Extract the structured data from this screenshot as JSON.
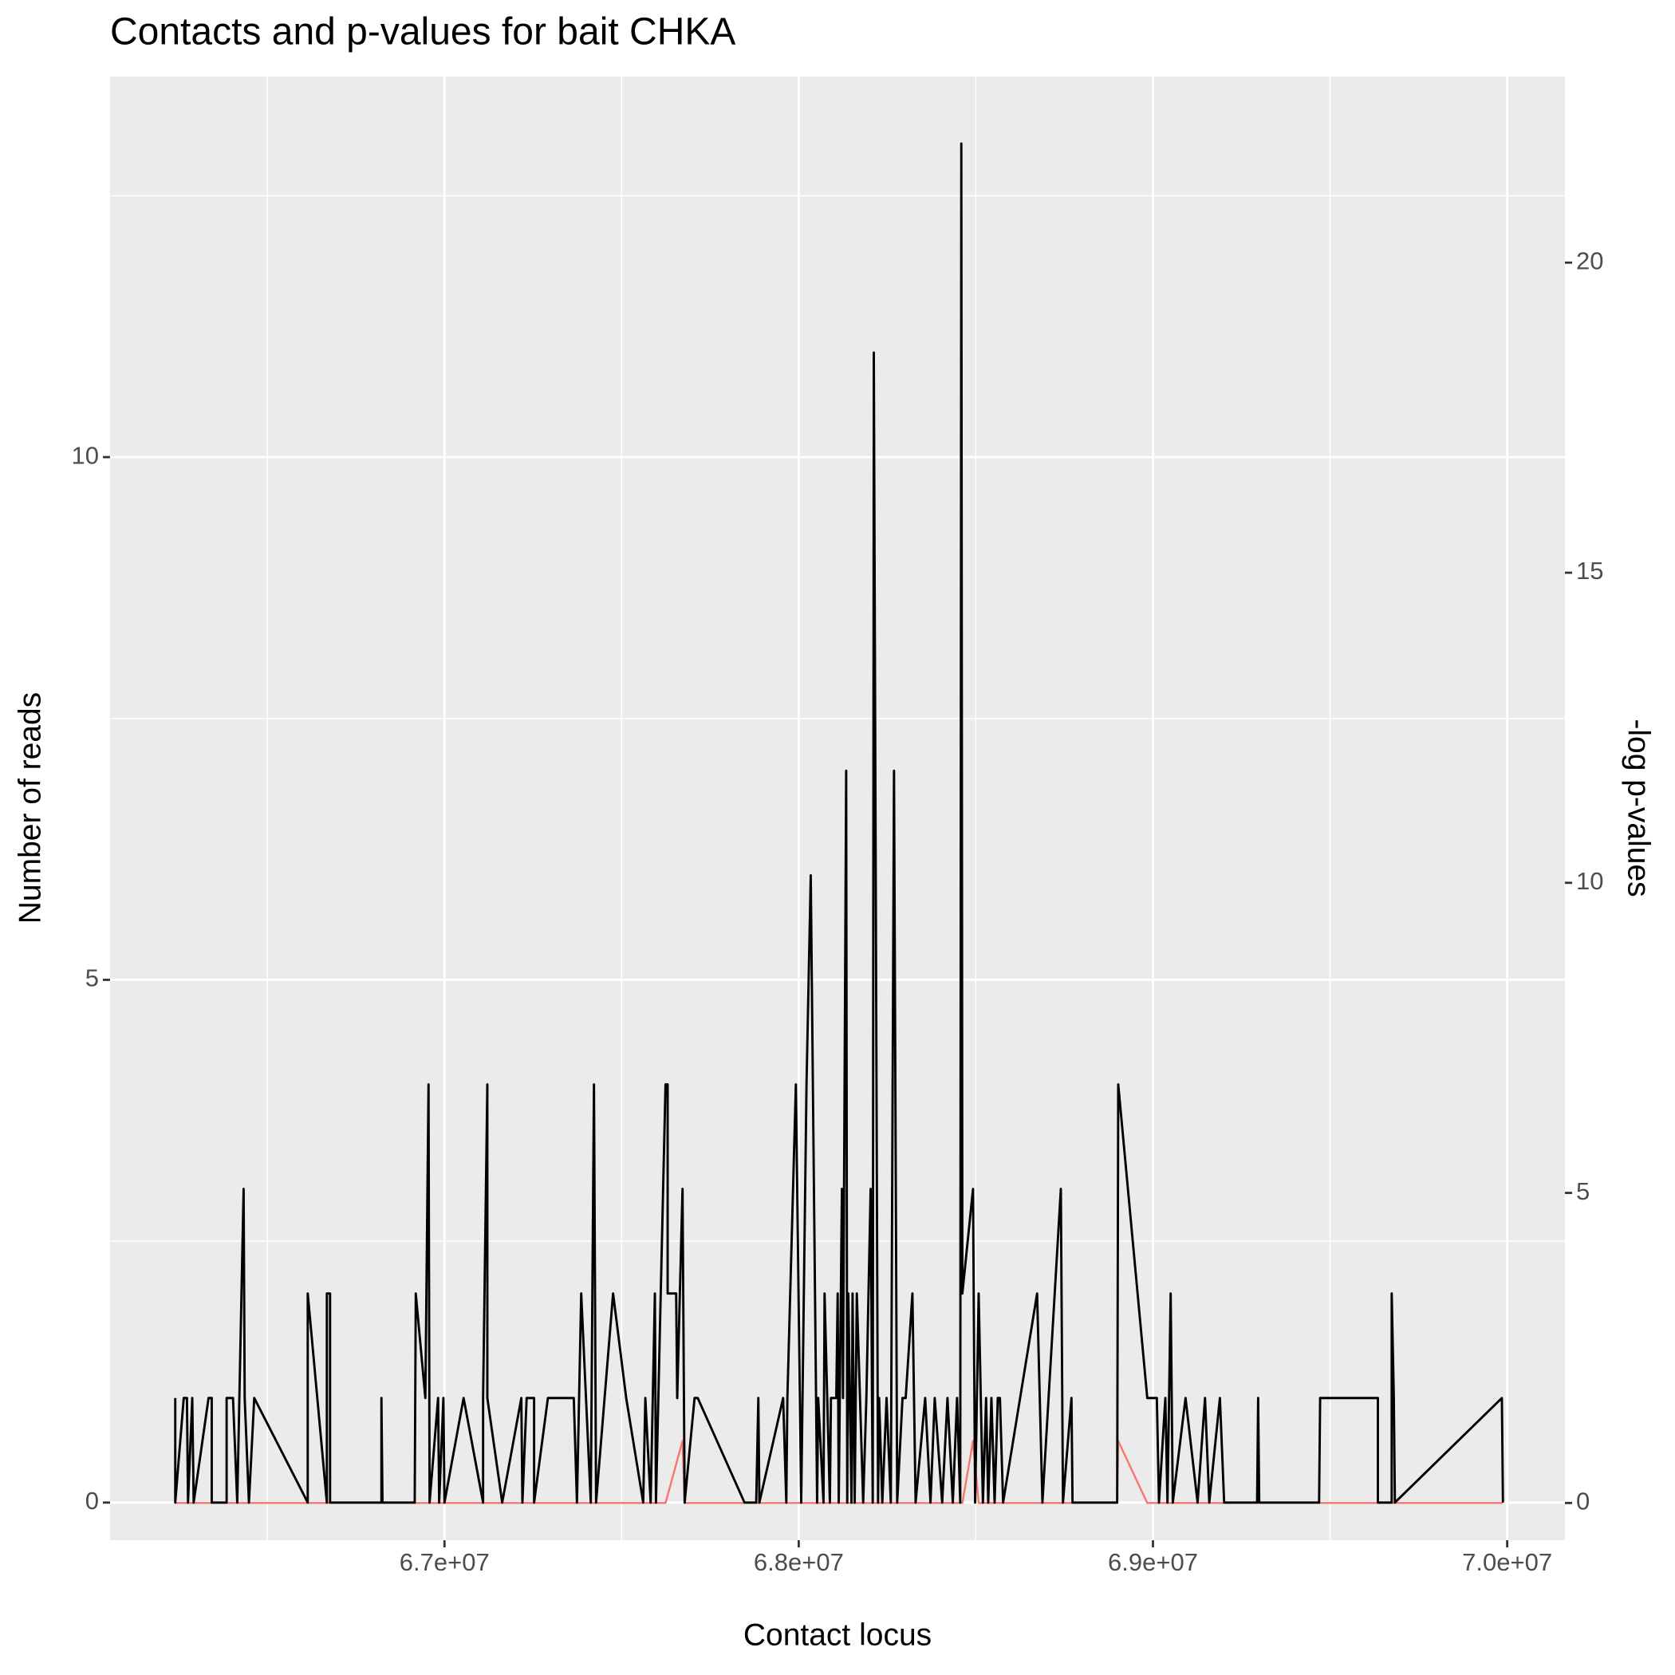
{
  "chart_data": {
    "type": "line",
    "title": "Contacts and p-values for bait CHKA",
    "x_label": "Contact locus",
    "y_label": "Number of reads",
    "y2_label": "-log p-values",
    "xlim": [
      66056000,
      70163000
    ],
    "ylim": [
      -0.36,
      13.64
    ],
    "y2lim": [
      -0.6,
      23.0
    ],
    "xticks": [
      {
        "value": 67000000,
        "label": "6.7e+07"
      },
      {
        "value": 68000000,
        "label": "6.8e+07"
      },
      {
        "value": 69000000,
        "label": "6.9e+07"
      },
      {
        "value": 70000000,
        "label": "7.0e+07"
      }
    ],
    "x_minor_ticks": [
      66500000,
      67500000,
      68500000,
      69500000
    ],
    "yticks": [
      0,
      5,
      10
    ],
    "y_minor_ticks": [
      2.5,
      7.5,
      12.5
    ],
    "y2ticks": [
      0,
      5,
      10,
      15,
      20
    ],
    "grid": true,
    "series": [
      {
        "color": "#000000",
        "x": [
          66240000,
          66240000,
          66264000,
          66273000,
          66276000,
          66288000,
          66292000,
          66334000,
          66343000,
          66343000,
          66385000,
          66385000,
          66403000,
          66415000,
          66433000,
          66436000,
          66448000,
          66463000,
          66614000,
          66614000,
          66668000,
          66668000,
          66677000,
          66677000,
          66822000,
          66822000,
          66825000,
          66916000,
          66919000,
          66946000,
          66955000,
          66958000,
          66982000,
          66985000,
          66997000,
          67000000,
          67054000,
          67109000,
          67109000,
          67121000,
          67121000,
          67163000,
          67217000,
          67220000,
          67232000,
          67253000,
          67253000,
          67292000,
          67365000,
          67374000,
          67386000,
          67413000,
          67422000,
          67428000,
          67476000,
          67513000,
          67561000,
          67567000,
          67582000,
          67594000,
          67597000,
          67624000,
          67630000,
          67630000,
          67654000,
          67657000,
          67672000,
          67678000,
          67706000,
          67715000,
          67847000,
          67880000,
          67886000,
          67889000,
          67956000,
          67965000,
          67968000,
          67992000,
          68007000,
          68022000,
          68034000,
          68052000,
          68055000,
          68070000,
          68073000,
          68088000,
          68091000,
          68106000,
          68110000,
          68113000,
          68122000,
          68125000,
          68131000,
          68134000,
          68137000,
          68140000,
          68149000,
          68152000,
          68158000,
          68164000,
          68173000,
          68182000,
          68191000,
          68203000,
          68209000,
          68212000,
          68224000,
          68227000,
          68236000,
          68248000,
          68260000,
          68269000,
          68278000,
          68293000,
          68302000,
          68321000,
          68330000,
          68357000,
          68372000,
          68384000,
          68405000,
          68420000,
          68435000,
          68447000,
          68456000,
          68459000,
          68462000,
          68492000,
          68498000,
          68508000,
          68520000,
          68529000,
          68535000,
          68544000,
          68553000,
          68562000,
          68568000,
          68577000,
          68673000,
          68688000,
          68740000,
          68746000,
          68770000,
          68773000,
          68899000,
          68902000,
          68984000,
          69011000,
          69017000,
          69035000,
          69041000,
          69050000,
          69056000,
          69092000,
          69126000,
          69147000,
          69159000,
          69189000,
          69201000,
          69294000,
          69297000,
          69300000,
          69469000,
          69472000,
          69635000,
          69635000,
          69674000,
          69674000,
          69680000,
          69683000,
          69985000,
          69988000
        ],
        "values": [
          1,
          0,
          1,
          1,
          0,
          1,
          0,
          1,
          1,
          0,
          0,
          1,
          1,
          0,
          3,
          1,
          0,
          1,
          0,
          2,
          0,
          2,
          2,
          0,
          0,
          1,
          0,
          0,
          2,
          1,
          4,
          0,
          1,
          0,
          1,
          0,
          1,
          0,
          1,
          4,
          1,
          0,
          1,
          0,
          1,
          1,
          0,
          1,
          1,
          0,
          2,
          0,
          4,
          0,
          2,
          1,
          0,
          1,
          0,
          2,
          0,
          4,
          4,
          2,
          2,
          1,
          3,
          0,
          1,
          1,
          0,
          0,
          1,
          0,
          1,
          0,
          1,
          4,
          0,
          4,
          6,
          0,
          1,
          0,
          2,
          0,
          1,
          1,
          2,
          0,
          3,
          1,
          5,
          7,
          0,
          2,
          0,
          2,
          0,
          2,
          1,
          0,
          1,
          3,
          0,
          11,
          0,
          1,
          0,
          1,
          0,
          7,
          0,
          1,
          1,
          2,
          0,
          1,
          0,
          1,
          0,
          1,
          0,
          1,
          0,
          13,
          2,
          3,
          0,
          2,
          0,
          1,
          0,
          1,
          0,
          1,
          1,
          0,
          2,
          0,
          3,
          0,
          1,
          0,
          0,
          4,
          1,
          1,
          0,
          1,
          0,
          2,
          0,
          1,
          0,
          1,
          0,
          1,
          0,
          0,
          1,
          0,
          0,
          1,
          1,
          0,
          0,
          2,
          1,
          0,
          1,
          0
        ]
      },
      {
        "color": "#F8766D",
        "axis": "y2",
        "x": [
          66240000,
          67624000,
          67672000,
          67678000,
          68462000,
          68492000,
          68508000,
          68899000,
          68902000,
          68984000,
          69988000
        ],
        "values": [
          0,
          0,
          1,
          0,
          0,
          1,
          0,
          0,
          1,
          0,
          0
        ]
      }
    ]
  }
}
